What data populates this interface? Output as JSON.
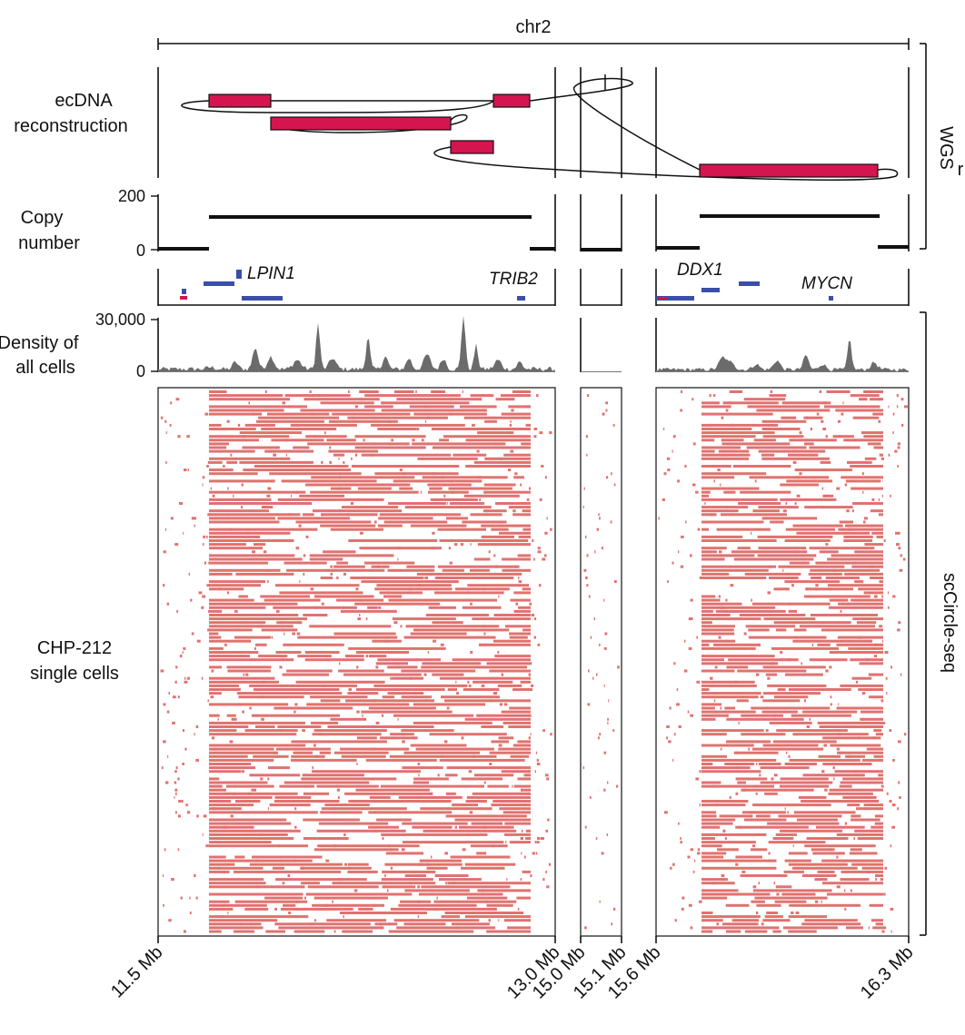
{
  "chromosome": "chr2",
  "row_labels": {
    "ecdna": [
      "ecDNA",
      "reconstruction"
    ],
    "copy_number": [
      "Copy",
      "number"
    ],
    "density": [
      "Density of",
      "all cells"
    ],
    "single_cells": [
      "CHP-212",
      "single cells"
    ]
  },
  "side_labels": {
    "wgs": "WGS",
    "wgs_cut": "r",
    "sc": "scCircle-seq"
  },
  "copy_number_axis": {
    "max": "200",
    "min": "0"
  },
  "density_axis": {
    "max": "30,000",
    "min": "0"
  },
  "x_ticks": [
    "11.5 Mb",
    "13.0 Mb",
    "15.0 Mb",
    "15.1 Mb",
    "15.6 Mb",
    "16.3 Mb"
  ],
  "genes": [
    "LPIN1",
    "TRIB2",
    "DDX1",
    "MYCN"
  ],
  "colors": {
    "segment": "#d4154f",
    "cell_read": "#e0726f",
    "density": "#6b6b6b",
    "line": "#111111",
    "gene_track": "#3a4fa8"
  },
  "copy_number_levels": {
    "panel1": [
      "~10",
      "~120",
      "~10"
    ],
    "panel2": [
      "~5"
    ],
    "panel3": [
      "~5",
      "~130",
      "~5"
    ]
  }
}
